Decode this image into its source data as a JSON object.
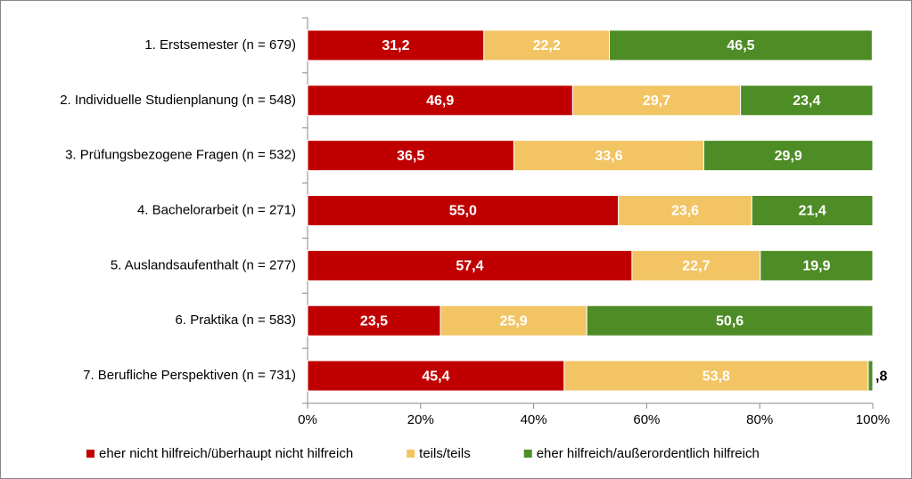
{
  "chart_data": {
    "type": "stacked-bar-horizontal",
    "categories": [
      "1. Erstsemester (n = 679)",
      "2. Individuelle Studienplanung (n = 548)",
      "3. Prüfungsbezogene Fragen (n = 532)",
      "4. Bachelorarbeit (n = 271)",
      "5. Auslandsaufenthalt (n = 277)",
      "6. Praktika (n = 583)",
      "7. Berufliche Perspektiven (n = 731)"
    ],
    "series": [
      {
        "name": "eher nicht hilfreich/überhaupt nicht hilfreich",
        "color": "#c00000",
        "values": [
          31.2,
          46.9,
          36.5,
          55.0,
          57.4,
          23.5,
          45.4
        ],
        "value_labels": [
          "31,2",
          "46,9",
          "36,5",
          "55,0",
          "57,4",
          "23,5",
          "45,4"
        ]
      },
      {
        "name": "teils/teils",
        "color": "#f2c464",
        "values": [
          22.2,
          29.7,
          33.6,
          23.6,
          22.7,
          25.9,
          53.8
        ],
        "value_labels": [
          "22,2",
          "29,7",
          "33,6",
          "23,6",
          "22,7",
          "25,9",
          "53,8"
        ]
      },
      {
        "name": "eher hilfreich/außerordentlich hilfreich",
        "color": "#4e8c26",
        "values": [
          46.5,
          23.4,
          29.9,
          21.4,
          19.9,
          50.6,
          0.8
        ],
        "value_labels": [
          "46,5",
          "23,4",
          "29,9",
          "21,4",
          "19,9",
          "50,6",
          ",8"
        ]
      }
    ],
    "xlim": [
      0,
      100
    ],
    "xticks": [
      {
        "value": 0,
        "label": "0%"
      },
      {
        "value": 20,
        "label": "20%"
      },
      {
        "value": 40,
        "label": "40%"
      },
      {
        "value": 60,
        "label": "60%"
      },
      {
        "value": 80,
        "label": "80%"
      },
      {
        "value": 100,
        "label": "100%"
      }
    ],
    "grid": false,
    "legend": "bottom"
  }
}
